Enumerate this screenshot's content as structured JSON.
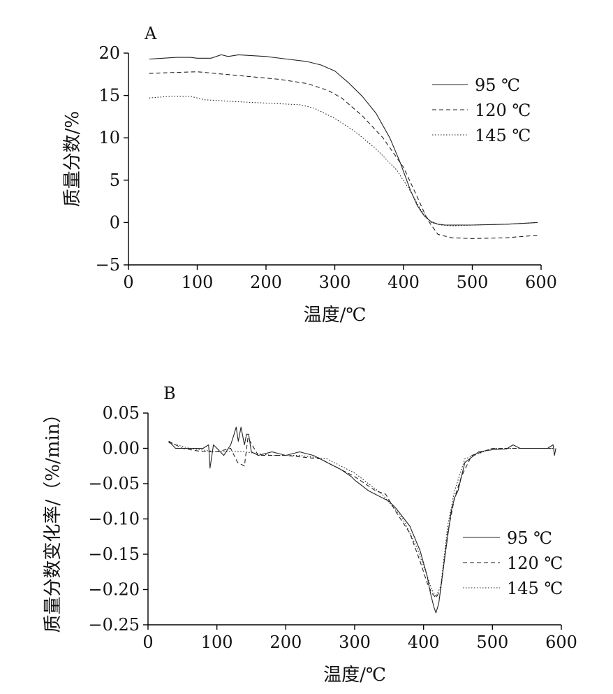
{
  "chart_data": [
    {
      "type": "line",
      "panel_label": "A",
      "xlabel": "温度/℃",
      "ylabel": "质量分数/%",
      "xlim": [
        0,
        600
      ],
      "ylim": [
        -5,
        20
      ],
      "xticks": [
        "0",
        "100",
        "200",
        "300",
        "400",
        "500",
        "600"
      ],
      "yticks": [
        "−5",
        "0",
        "5",
        "10",
        "15",
        "20"
      ],
      "legend_position": "top-right",
      "series": [
        {
          "name": "95 ℃",
          "dash": "solid",
          "x": [
            30,
            50,
            70,
            90,
            100,
            120,
            135,
            145,
            160,
            200,
            230,
            260,
            280,
            300,
            320,
            340,
            360,
            380,
            395,
            410,
            420,
            430,
            440,
            450,
            460,
            480,
            500,
            550,
            595
          ],
          "y": [
            19.3,
            19.4,
            19.5,
            19.5,
            19.4,
            19.4,
            19.8,
            19.6,
            19.8,
            19.6,
            19.3,
            19.0,
            18.6,
            17.9,
            16.5,
            14.9,
            12.9,
            10.0,
            7.1,
            3.8,
            2.0,
            0.8,
            0.1,
            -0.2,
            -0.3,
            -0.3,
            -0.3,
            -0.2,
            0.0
          ]
        },
        {
          "name": "120 ℃",
          "dash": "dashed",
          "x": [
            30,
            60,
            100,
            140,
            180,
            220,
            260,
            290,
            310,
            340,
            370,
            400,
            420,
            435,
            450,
            470,
            500,
            550,
            595
          ],
          "y": [
            17.6,
            17.7,
            17.8,
            17.5,
            17.2,
            16.9,
            16.4,
            15.6,
            14.7,
            12.6,
            10.0,
            6.5,
            3.0,
            0.3,
            -1.4,
            -1.8,
            -1.9,
            -1.8,
            -1.5
          ]
        },
        {
          "name": "145 ℃",
          "dash": "dotted",
          "x": [
            30,
            60,
            90,
            100,
            110,
            150,
            200,
            250,
            270,
            300,
            330,
            360,
            390,
            410,
            425,
            440,
            455,
            470,
            500,
            550,
            595
          ],
          "y": [
            14.7,
            14.9,
            14.9,
            14.7,
            14.5,
            14.3,
            14.1,
            13.9,
            13.5,
            12.3,
            10.7,
            8.7,
            6.2,
            3.7,
            1.5,
            0.0,
            -0.3,
            -0.4,
            -0.3,
            -0.2,
            0.0
          ]
        }
      ]
    },
    {
      "type": "line",
      "panel_label": "B",
      "xlabel": "温度/℃",
      "ylabel": "质量分数变化率/（%/min）",
      "xlim": [
        0,
        600
      ],
      "ylim": [
        -0.25,
        0.05
      ],
      "xticks": [
        "0",
        "100",
        "200",
        "300",
        "400",
        "500",
        "600"
      ],
      "yticks": [
        "0.05",
        "0.00",
        "−0.05",
        "−0.10",
        "−0.15",
        "−0.20",
        "−0.25"
      ],
      "legend_position": "right",
      "series": [
        {
          "name": "95 ℃",
          "dash": "solid",
          "x": [
            30,
            40,
            60,
            80,
            88,
            90,
            95,
            100,
            110,
            120,
            125,
            128,
            131,
            135,
            140,
            143,
            146,
            150,
            160,
            180,
            200,
            220,
            240,
            250,
            260,
            280,
            295,
            300,
            320,
            340,
            350,
            360,
            380,
            395,
            405,
            410,
            415,
            418,
            422,
            430,
            440,
            445,
            450,
            460,
            480,
            500,
            520,
            530,
            540,
            560,
            580,
            588,
            590,
            592
          ],
          "y": [
            0.01,
            0.0,
            0.0,
            0.0,
            0.005,
            -0.028,
            0.005,
            0.0,
            -0.01,
            0.005,
            0.02,
            0.03,
            0.01,
            0.03,
            0.005,
            0.02,
            0.02,
            -0.005,
            -0.01,
            -0.005,
            -0.01,
            -0.005,
            -0.01,
            -0.015,
            -0.02,
            -0.03,
            -0.04,
            -0.045,
            -0.06,
            -0.07,
            -0.075,
            -0.085,
            -0.11,
            -0.145,
            -0.18,
            -0.205,
            -0.225,
            -0.233,
            -0.22,
            -0.16,
            -0.09,
            -0.07,
            -0.06,
            -0.02,
            -0.005,
            -0.002,
            -0.001,
            0.005,
            0.0,
            0.0,
            0.0,
            0.005,
            -0.01,
            0.0
          ]
        },
        {
          "name": "120 ℃",
          "dash": "dashed",
          "x": [
            30,
            50,
            80,
            100,
            120,
            130,
            140,
            145,
            160,
            200,
            250,
            280,
            300,
            330,
            345,
            360,
            380,
            395,
            405,
            412,
            418,
            425,
            435,
            445,
            455,
            470,
            500,
            550,
            590
          ],
          "y": [
            0.01,
            0.0,
            -0.005,
            -0.005,
            0.0,
            -0.02,
            -0.025,
            0.015,
            -0.01,
            -0.01,
            -0.015,
            -0.03,
            -0.04,
            -0.06,
            -0.065,
            -0.09,
            -0.12,
            -0.16,
            -0.19,
            -0.205,
            -0.212,
            -0.2,
            -0.12,
            -0.07,
            -0.04,
            -0.01,
            0.0,
            0.0,
            0.0
          ]
        },
        {
          "name": "145 ℃",
          "dash": "dotted",
          "x": [
            30,
            60,
            100,
            140,
            180,
            220,
            260,
            300,
            340,
            370,
            390,
            405,
            412,
            418,
            425,
            435,
            445,
            460,
            500,
            550,
            590
          ],
          "y": [
            0.008,
            0.0,
            -0.005,
            -0.005,
            -0.01,
            -0.01,
            -0.015,
            -0.035,
            -0.065,
            -0.1,
            -0.14,
            -0.18,
            -0.2,
            -0.21,
            -0.195,
            -0.11,
            -0.06,
            -0.015,
            0.0,
            0.0,
            0.0
          ]
        }
      ]
    }
  ]
}
